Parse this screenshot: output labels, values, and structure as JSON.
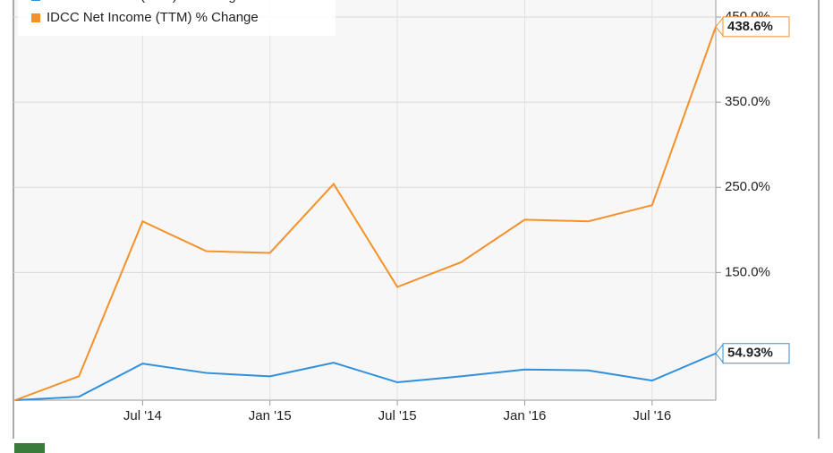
{
  "chart_data": {
    "type": "line",
    "categories": [
      null,
      null,
      "Jul '14",
      null,
      "Jan '15",
      null,
      "Jul '15",
      null,
      "Jan '16",
      null,
      "Jul '16",
      null
    ],
    "series": [
      {
        "name": "IDCC Revenue (TTM) % Change",
        "color": "#2f8fdc",
        "values": [
          0,
          4,
          43,
          32,
          28,
          44,
          21,
          28,
          36,
          35,
          23,
          54.93
        ],
        "value_labels": {
          "11": "54.93%"
        }
      },
      {
        "name": "IDCC Net Income (TTM) % Change",
        "color": "#f5912a",
        "values": [
          0,
          28,
          210,
          175,
          173,
          254,
          133,
          162,
          212,
          210,
          229,
          438.6
        ],
        "value_labels": {
          "11": "438.6%"
        }
      }
    ],
    "ylim": [
      0,
      470
    ],
    "yticks": [
      {
        "value": 150,
        "label": "150.0%"
      },
      {
        "value": 250,
        "label": "250.0%"
      },
      {
        "value": 350,
        "label": "350.0%"
      },
      {
        "value": 450,
        "label": "450.0%"
      }
    ],
    "grid": true
  }
}
